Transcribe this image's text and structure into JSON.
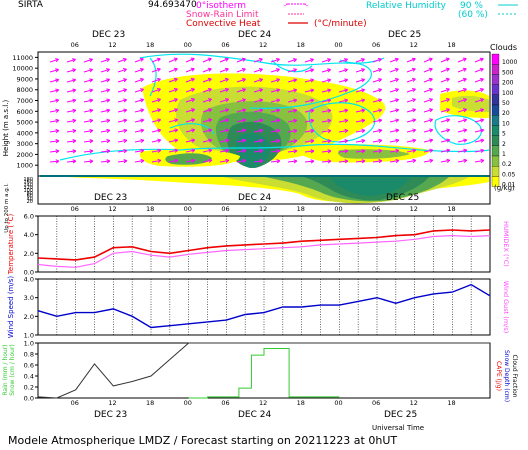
{
  "header": {
    "station": "SIRTA",
    "code": "94.693470",
    "legend_isotherm": "0°isotherm",
    "legend_snow_rain": "Snow-Rain Limit",
    "legend_convective": "Convective Heat",
    "legend_unit": "(°C/minute)",
    "legend_rh": "Relative Humidity",
    "legend_rh_90": "90 %",
    "legend_rh_60": "(60 %)"
  },
  "days": [
    "DEC 23",
    "DEC 24",
    "DEC 25"
  ],
  "hour_ticks": [
    "06",
    "12",
    "18",
    "00",
    "06",
    "12",
    "18",
    "00",
    "06",
    "12",
    "18"
  ],
  "footer": {
    "caption": "Modele Atmospherique LMDZ / Forecast starting on 20211223 at 0hUT",
    "universal_time": "Universal Time"
  },
  "colors": {
    "wind_arrow": "#ff00ff",
    "rh_contour": "#00e5ee",
    "temperature": "#ee0000",
    "humidex": "#ff66ff",
    "wind_speed": "#0000cc",
    "rain": "#333333",
    "snow": "#33cc33"
  },
  "chart_data": [
    {
      "type": "heatmap",
      "title": "Clouds (g/kg)",
      "ylabel": "Height (m a.s.l.)",
      "ylabel2": "Up to 200 m a.g.l.",
      "ylim": [
        0,
        11500
      ],
      "yticks": [
        1000,
        2000,
        3000,
        4000,
        5000,
        6000,
        7000,
        8000,
        9000,
        10000,
        11000
      ],
      "low_yticks": [
        20,
        40,
        60,
        80,
        100,
        120,
        140,
        160,
        180
      ],
      "colorbar_title": "Clouds",
      "colorbar_unit": "(g/kg)",
      "colorbar_levels": [
        "1000",
        "500",
        "200",
        "100",
        "50",
        "20",
        "10",
        "5",
        "2",
        "1",
        "0.2",
        "0.05",
        "0.01"
      ],
      "colorbar_colors": [
        "#ff00ff",
        "#cc22cc",
        "#9933cc",
        "#6633cc",
        "#333399",
        "#1a4a9a",
        "#1a7a8a",
        "#1a8a6a",
        "#2e8b57",
        "#55a84f",
        "#88c040",
        "#c9dd33",
        "#ffff00"
      ]
    },
    {
      "type": "line",
      "ylabel": "Temperature (°C)",
      "ylabel2": "HUMIDEX (°C)",
      "ylim": [
        0,
        6
      ],
      "yticks": [
        "0.0",
        "2.0",
        "4.0",
        "6.0"
      ],
      "series": [
        {
          "name": "Temperature",
          "x": [
            0,
            3,
            6,
            9,
            12,
            15,
            18,
            21,
            24,
            27,
            30,
            33,
            36,
            39,
            42,
            45,
            48,
            51,
            54,
            57,
            60,
            63,
            66,
            69,
            72
          ],
          "values": [
            1.5,
            1.4,
            1.3,
            1.6,
            2.6,
            2.7,
            2.2,
            2.0,
            2.3,
            2.6,
            2.8,
            2.9,
            3.0,
            3.1,
            3.3,
            3.4,
            3.5,
            3.6,
            3.7,
            3.9,
            4.0,
            4.4,
            4.5,
            4.4,
            4.5
          ]
        },
        {
          "name": "HUMIDEX",
          "x": [
            0,
            3,
            6,
            9,
            12,
            15,
            18,
            21,
            24,
            27,
            30,
            33,
            36,
            39,
            42,
            45,
            48,
            51,
            54,
            57,
            60,
            63,
            66,
            69,
            72
          ],
          "values": [
            0.8,
            0.6,
            0.5,
            0.9,
            2.0,
            2.2,
            1.8,
            1.6,
            1.9,
            2.1,
            2.3,
            2.4,
            2.5,
            2.6,
            2.7,
            2.9,
            3.0,
            3.1,
            3.2,
            3.3,
            3.5,
            3.8,
            3.9,
            3.8,
            3.9
          ]
        }
      ]
    },
    {
      "type": "line",
      "ylabel": "Wind Speed (m/s)",
      "ylabel2": "Wind Gust (m/s)",
      "ylim": [
        1.0,
        4.0
      ],
      "yticks": [
        "1.0",
        "2.0",
        "3.0",
        "4.0"
      ],
      "series": [
        {
          "name": "Wind Speed",
          "x": [
            0,
            3,
            6,
            9,
            12,
            15,
            18,
            21,
            24,
            27,
            30,
            33,
            36,
            39,
            42,
            45,
            48,
            51,
            54,
            57,
            60,
            63,
            66,
            69,
            72
          ],
          "values": [
            2.3,
            2.0,
            2.2,
            2.2,
            2.4,
            2.0,
            1.4,
            1.5,
            1.6,
            1.7,
            1.8,
            2.1,
            2.2,
            2.5,
            2.5,
            2.6,
            2.6,
            2.8,
            3.0,
            2.7,
            3.0,
            3.2,
            3.3,
            3.7,
            3.1
          ]
        }
      ]
    },
    {
      "type": "line",
      "ylabel": "Rain (mm / hour)",
      "ylabel2": "Snow (cm / hour)",
      "ylabel3": "CAPE (J/g)",
      "ylabel4": "Snow Depth (cm)",
      "ylabel5": "Cloud Fraction",
      "ylim": [
        0,
        1
      ],
      "yticks": [
        "0.0",
        "0.2",
        "0.4",
        "0.6",
        "0.8",
        "1.0"
      ],
      "series": [
        {
          "name": "Rain",
          "x": [
            0,
            3,
            6,
            9,
            12,
            15,
            18,
            21,
            24,
            27,
            30,
            33,
            36,
            39,
            42,
            45,
            48,
            51,
            54,
            57,
            60,
            63,
            66,
            69,
            72
          ],
          "values": [
            0.02,
            0.0,
            0.15,
            0.62,
            0.22,
            0.3,
            0.4,
            0.7,
            1.0,
            1.0,
            1.0,
            1.0,
            1.0,
            1.0,
            1.0,
            1.0,
            1.0,
            1.0,
            1.0,
            1.0,
            1.0,
            1.0,
            1.0,
            1.0,
            1.0
          ]
        },
        {
          "name": "Snow",
          "x": [
            24,
            27,
            30,
            32,
            33,
            34,
            35,
            36,
            37,
            38,
            39,
            40,
            42,
            48
          ],
          "values": [
            0.0,
            0.02,
            0.02,
            0.18,
            0.18,
            0.78,
            0.78,
            0.9,
            0.9,
            0.9,
            0.9,
            0.02,
            0.02,
            0.02
          ]
        }
      ]
    }
  ]
}
